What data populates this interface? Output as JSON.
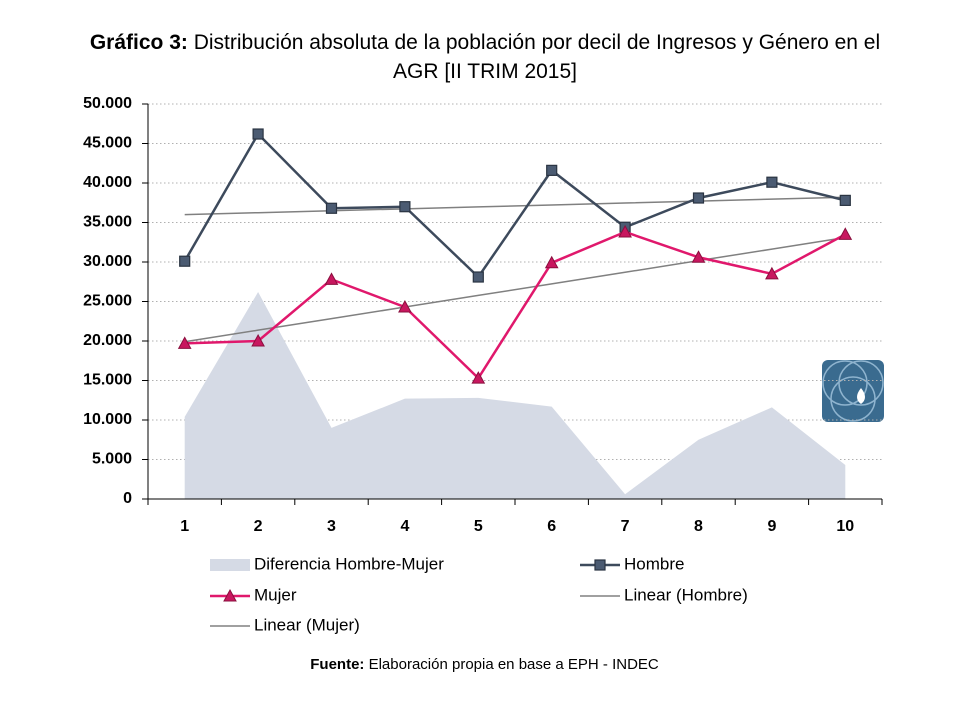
{
  "chart_data": {
    "type": "line",
    "title_prefix": "Gráfico 3:",
    "title": "Distribución absoluta  de la población por decil de Ingresos y Género en el AGR [II TRIM 2015]",
    "source_prefix": "Fuente:",
    "source": "Elaboración propia en base a EPH - INDEC",
    "categories": [
      "1",
      "2",
      "3",
      "4",
      "5",
      "6",
      "7",
      "8",
      "9",
      "10"
    ],
    "series": [
      {
        "name": "Diferencia Hombre-Mujer",
        "kind": "area",
        "color": "#d5dae5",
        "values": [
          10400,
          26200,
          9000,
          12700,
          12800,
          11700,
          600,
          7500,
          11600,
          4300
        ]
      },
      {
        "name": "Hombre",
        "kind": "line",
        "marker": "square",
        "color": "#3d4a5c",
        "marker_color": "#4b5b72",
        "values": [
          30100,
          46200,
          36800,
          37000,
          28100,
          41600,
          34400,
          38100,
          40100,
          37800
        ]
      },
      {
        "name": "Mujer",
        "kind": "line",
        "marker": "triangle",
        "color": "#e0186c",
        "marker_color": "#c8175f",
        "values": [
          19700,
          20000,
          27800,
          24300,
          15300,
          29900,
          33800,
          30600,
          28500,
          33500
        ]
      },
      {
        "name": "Linear (Hombre)",
        "kind": "line",
        "color": "#808080",
        "values": [
          36000,
          36240,
          36490,
          36730,
          36980,
          37220,
          37470,
          37710,
          37960,
          38200
        ]
      },
      {
        "name": "Linear (Mujer)",
        "kind": "line",
        "color": "#808080",
        "values": [
          19900,
          21370,
          22830,
          24300,
          25770,
          27230,
          28700,
          30170,
          31630,
          33100
        ]
      }
    ],
    "ylim": [
      0,
      50000
    ],
    "yticks": [
      0,
      {
        "value": 5000,
        "label": "5.000"
      },
      {
        "value": 10000,
        "label": "10.000"
      },
      {
        "value": 15000,
        "label": "15.000"
      },
      {
        "value": 20000,
        "label": "20.000"
      },
      {
        "value": 25000,
        "label": "25.000"
      },
      {
        "value": 30000,
        "label": "30.000"
      },
      {
        "value": 35000,
        "label": "35.000"
      },
      {
        "value": 40000,
        "label": "40.000"
      },
      {
        "value": 45000,
        "label": "45.000"
      },
      {
        "value": 50000,
        "label": "50.000"
      }
    ],
    "grid": true,
    "legend": "bottom"
  }
}
